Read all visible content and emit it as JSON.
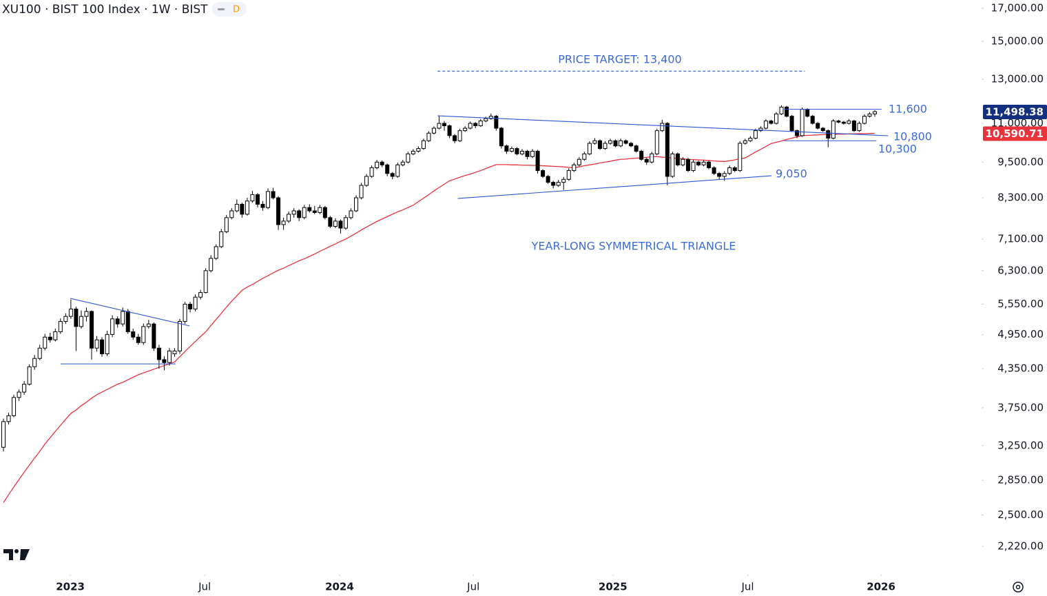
{
  "chart_data": {
    "type": "candlestick",
    "title": "XU100 · BIST 100 Index · 1W · BIST",
    "badge": "D",
    "log_scale": true,
    "ylim": [
      2016,
      17540
    ],
    "yticks": [
      {
        "value": 17000,
        "label": "17,000.00"
      },
      {
        "value": 15000,
        "label": "15,000.00"
      },
      {
        "value": 13000,
        "label": "13,000.00"
      },
      {
        "value": 11000,
        "label": "11,000.00"
      },
      {
        "value": 9500,
        "label": "9,500.00"
      },
      {
        "value": 8300,
        "label": "8,300.00"
      },
      {
        "value": 7100,
        "label": "7,100.00"
      },
      {
        "value": 6300,
        "label": "6,300.00"
      },
      {
        "value": 5550,
        "label": "5,550.00"
      },
      {
        "value": 4950,
        "label": "4,950.00"
      },
      {
        "value": 4350,
        "label": "4,350.00"
      },
      {
        "value": 3750,
        "label": "3,750.00"
      },
      {
        "value": 3250,
        "label": "3,250.00"
      },
      {
        "value": 2850,
        "label": "2,850.00"
      },
      {
        "value": 2500,
        "label": "2,500.00"
      },
      {
        "value": 2220,
        "label": "2,220.00"
      }
    ],
    "xlim": [
      -0.664,
      188.58
    ],
    "xticks": [
      {
        "value": 12.9,
        "label": "2023"
      },
      {
        "value": 38.8,
        "label": "Jul"
      },
      {
        "value": 64.8,
        "label": "2024"
      },
      {
        "value": 90.6,
        "label": "Jul"
      },
      {
        "value": 117.5,
        "label": "2025"
      },
      {
        "value": 143.5,
        "label": "Jul"
      },
      {
        "value": 169.2,
        "label": "2026"
      }
    ],
    "up_color": "#ffffff",
    "down_color": "#000000",
    "candles": [
      [
        3230,
        3600,
        3180,
        3560
      ],
      [
        3560,
        3680,
        3520,
        3640
      ],
      [
        3640,
        3940,
        3620,
        3900
      ],
      [
        3900,
        4020,
        3850,
        3980
      ],
      [
        3980,
        4150,
        3940,
        4100
      ],
      [
        4100,
        4420,
        4080,
        4380
      ],
      [
        4380,
        4580,
        4330,
        4520
      ],
      [
        4520,
        4760,
        4490,
        4700
      ],
      [
        4700,
        4960,
        4660,
        4900
      ],
      [
        4900,
        4980,
        4800,
        4850
      ],
      [
        4850,
        5060,
        4820,
        5000
      ],
      [
        5000,
        5260,
        4960,
        5200
      ],
      [
        5200,
        5360,
        5150,
        5300
      ],
      [
        5300,
        5650,
        5250,
        5450
      ],
      [
        5450,
        5500,
        4650,
        5100
      ],
      [
        5100,
        5420,
        5060,
        5300
      ],
      [
        5300,
        5480,
        5200,
        5400
      ],
      [
        5400,
        5420,
        4500,
        4700
      ],
      [
        4700,
        4920,
        4640,
        4850
      ],
      [
        4850,
        4900,
        4550,
        4600
      ],
      [
        4600,
        5020,
        4560,
        4950
      ],
      [
        4950,
        5320,
        4900,
        5250
      ],
      [
        5250,
        5300,
        5080,
        5150
      ],
      [
        5150,
        5480,
        5100,
        5400
      ],
      [
        5400,
        5450,
        4960,
        5000
      ],
      [
        5000,
        5060,
        4850,
        4900
      ],
      [
        4900,
        4960,
        4760,
        4800
      ],
      [
        4800,
        5160,
        4760,
        5100
      ],
      [
        5100,
        5230,
        5060,
        5150
      ],
      [
        5150,
        5180,
        4650,
        4700
      ],
      [
        4700,
        4760,
        4350,
        4500
      ],
      [
        4500,
        4560,
        4320,
        4450
      ],
      [
        4450,
        4700,
        4400,
        4650
      ],
      [
        4600,
        4700,
        4550,
        4650
      ],
      [
        4650,
        5250,
        4600,
        5200
      ],
      [
        5200,
        5600,
        5150,
        5550
      ],
      [
        5550,
        5600,
        5380,
        5450
      ],
      [
        5450,
        5760,
        5400,
        5700
      ],
      [
        5700,
        5860,
        5650,
        5800
      ],
      [
        5800,
        6360,
        5780,
        6300
      ],
      [
        6300,
        6680,
        6260,
        6600
      ],
      [
        6600,
        6960,
        6560,
        6900
      ],
      [
        6900,
        7380,
        6860,
        7300
      ],
      [
        7300,
        7780,
        7260,
        7700
      ],
      [
        7700,
        7980,
        7650,
        7900
      ],
      [
        7900,
        8250,
        7850,
        8100
      ],
      [
        8100,
        8150,
        7700,
        7800
      ],
      [
        7800,
        8300,
        7760,
        8200
      ],
      [
        8200,
        8520,
        8150,
        8400
      ],
      [
        8400,
        8450,
        8000,
        8100
      ],
      [
        8100,
        8200,
        7900,
        8000
      ],
      [
        8000,
        8600,
        7950,
        8500
      ],
      [
        8500,
        8620,
        8250,
        8300
      ],
      [
        8300,
        8350,
        7350,
        7500
      ],
      [
        7500,
        7700,
        7350,
        7600
      ],
      [
        7600,
        7880,
        7550,
        7800
      ],
      [
        7800,
        7980,
        7700,
        7900
      ],
      [
        7900,
        7950,
        7600,
        7700
      ],
      [
        7700,
        8080,
        7650,
        8000
      ],
      [
        8000,
        8100,
        7850,
        7900
      ],
      [
        7900,
        8050,
        7800,
        7850
      ],
      [
        7850,
        8080,
        7800,
        8000
      ],
      [
        8000,
        8050,
        7650,
        7700
      ],
      [
        7700,
        7750,
        7400,
        7450
      ],
      [
        7450,
        7680,
        7400,
        7600
      ],
      [
        7600,
        7650,
        7250,
        7400
      ],
      [
        7400,
        7780,
        7350,
        7700
      ],
      [
        7700,
        7980,
        7650,
        7900
      ],
      [
        7900,
        8380,
        7860,
        8300
      ],
      [
        8300,
        8780,
        8250,
        8700
      ],
      [
        8700,
        9080,
        8650,
        9000
      ],
      [
        9000,
        9380,
        8950,
        9300
      ],
      [
        9300,
        9580,
        9250,
        9500
      ],
      [
        9500,
        9560,
        9320,
        9400
      ],
      [
        9400,
        9450,
        9000,
        9100
      ],
      [
        9100,
        9150,
        8900,
        9000
      ],
      [
        9000,
        9480,
        8950,
        9400
      ],
      [
        9400,
        9580,
        9350,
        9500
      ],
      [
        9500,
        9880,
        9450,
        9800
      ],
      [
        9800,
        9980,
        9750,
        9900
      ],
      [
        9900,
        10080,
        9850,
        10000
      ],
      [
        10000,
        10380,
        9950,
        10300
      ],
      [
        10300,
        10680,
        10250,
        10600
      ],
      [
        10600,
        10880,
        10550,
        10800
      ],
      [
        10800,
        11300,
        10750,
        11000
      ],
      [
        11000,
        11100,
        10700,
        10900
      ],
      [
        10900,
        10950,
        10400,
        10500
      ],
      [
        10500,
        10560,
        10200,
        10300
      ],
      [
        10300,
        10780,
        10250,
        10700
      ],
      [
        10700,
        10880,
        10650,
        10800
      ],
      [
        10800,
        11080,
        10750,
        11000
      ],
      [
        11000,
        11050,
        10800,
        10900
      ],
      [
        10900,
        11180,
        10850,
        11100
      ],
      [
        11100,
        11280,
        11050,
        11200
      ],
      [
        11200,
        11420,
        11150,
        11300
      ],
      [
        11300,
        11350,
        10700,
        10800
      ],
      [
        10800,
        10850,
        10000,
        10100
      ],
      [
        10100,
        10150,
        9800,
        9900
      ],
      [
        9900,
        10080,
        9850,
        10000
      ],
      [
        10000,
        10050,
        9750,
        9800
      ],
      [
        9800,
        9980,
        9750,
        9900
      ],
      [
        9900,
        9950,
        9600,
        9700
      ],
      [
        9700,
        9980,
        9650,
        9900
      ],
      [
        9900,
        9950,
        9100,
        9200
      ],
      [
        9200,
        9250,
        8950,
        9000
      ],
      [
        9000,
        9050,
        8750,
        8800
      ],
      [
        8800,
        8850,
        8600,
        8700
      ],
      [
        8700,
        8880,
        8650,
        8800
      ],
      [
        8800,
        8980,
        8550,
        8900
      ],
      [
        8900,
        9280,
        8850,
        9200
      ],
      [
        9200,
        9480,
        9150,
        9400
      ],
      [
        9400,
        9680,
        9350,
        9600
      ],
      [
        9600,
        9880,
        9550,
        9800
      ],
      [
        9800,
        10280,
        9750,
        10200
      ],
      [
        10200,
        10400,
        10150,
        10300
      ],
      [
        10300,
        10350,
        9950,
        10000
      ],
      [
        10000,
        10280,
        9950,
        10200
      ],
      [
        10200,
        10380,
        10150,
        10300
      ],
      [
        10300,
        10350,
        10050,
        10100
      ],
      [
        10100,
        10380,
        10050,
        10300
      ],
      [
        10300,
        10350,
        10150,
        10200
      ],
      [
        10200,
        10250,
        10050,
        10100
      ],
      [
        10100,
        10150,
        9850,
        9900
      ],
      [
        9900,
        9950,
        9550,
        9600
      ],
      [
        9600,
        9650,
        9400,
        9500
      ],
      [
        9500,
        9880,
        9450,
        9800
      ],
      [
        9800,
        10780,
        9750,
        10700
      ],
      [
        10700,
        11150,
        10650,
        11000
      ],
      [
        11000,
        11050,
        8700,
        9000
      ],
      [
        9000,
        9880,
        8950,
        9800
      ],
      [
        9800,
        9850,
        9350,
        9400
      ],
      [
        9400,
        9680,
        9350,
        9600
      ],
      [
        9600,
        9650,
        9150,
        9200
      ],
      [
        9200,
        9580,
        9150,
        9500
      ],
      [
        9500,
        9550,
        9350,
        9400
      ],
      [
        9400,
        9580,
        9350,
        9500
      ],
      [
        9500,
        9550,
        9250,
        9300
      ],
      [
        9300,
        9350,
        9050,
        9100
      ],
      [
        9100,
        9150,
        8900,
        9000
      ],
      [
        9000,
        9180,
        8850,
        9100
      ],
      [
        9100,
        9380,
        9050,
        9300
      ],
      [
        9300,
        9350,
        9150,
        9200
      ],
      [
        9200,
        10280,
        9150,
        10200
      ],
      [
        10200,
        10380,
        10150,
        10300
      ],
      [
        10300,
        10480,
        10250,
        10400
      ],
      [
        10400,
        10780,
        10350,
        10700
      ],
      [
        10700,
        10880,
        10650,
        10800
      ],
      [
        10800,
        11180,
        10750,
        11100
      ],
      [
        11100,
        11150,
        10950,
        11000
      ],
      [
        11000,
        11480,
        10950,
        11400
      ],
      [
        11400,
        11780,
        11350,
        11700
      ],
      [
        11700,
        11750,
        11250,
        11300
      ],
      [
        11300,
        11350,
        10650,
        10700
      ],
      [
        10700,
        10750,
        10400,
        10500
      ],
      [
        10500,
        11680,
        10450,
        11600
      ],
      [
        11600,
        11650,
        11250,
        11300
      ],
      [
        11300,
        11350,
        10950,
        11000
      ],
      [
        11000,
        11050,
        10750,
        10800
      ],
      [
        10800,
        10850,
        10650,
        10700
      ],
      [
        10700,
        10750,
        10050,
        10400
      ],
      [
        10400,
        11180,
        10350,
        11100
      ],
      [
        11100,
        11150,
        11000,
        11050
      ],
      [
        11050,
        11100,
        10950,
        11000
      ],
      [
        11000,
        11180,
        10950,
        11100
      ],
      [
        11100,
        11150,
        10650,
        10700
      ],
      [
        10700,
        11080,
        10650,
        11000
      ],
      [
        11000,
        11380,
        10950,
        11300
      ],
      [
        11300,
        11480,
        11250,
        11400
      ],
      [
        11400,
        11560,
        11280,
        11498.38
      ]
    ],
    "close_label": "11,498.38",
    "close_label_color": "#132f80",
    "ma": {
      "color": "#e8323c",
      "value_label": "10,590.71",
      "values": [
        2620,
        2700,
        2780,
        2860,
        2940,
        3020,
        3100,
        3180,
        3270,
        3350,
        3430,
        3510,
        3590,
        3670,
        3720,
        3780,
        3830,
        3890,
        3940,
        3980,
        4020,
        4060,
        4100,
        4130,
        4170,
        4210,
        4250,
        4280,
        4310,
        4340,
        4370,
        4400,
        4430,
        4460,
        4550,
        4640,
        4730,
        4820,
        4910,
        5000,
        5120,
        5240,
        5360,
        5490,
        5610,
        5730,
        5850,
        5920,
        5980,
        6050,
        6120,
        6180,
        6250,
        6310,
        6360,
        6420,
        6480,
        6540,
        6590,
        6650,
        6710,
        6780,
        6840,
        6910,
        6970,
        7040,
        7100,
        7180,
        7260,
        7350,
        7430,
        7510,
        7590,
        7660,
        7730,
        7800,
        7870,
        7930,
        8000,
        8070,
        8180,
        8290,
        8400,
        8520,
        8630,
        8740,
        8850,
        8910,
        8970,
        9030,
        9080,
        9140,
        9200,
        9270,
        9340,
        9410,
        9410,
        9410,
        9400,
        9400,
        9390,
        9390,
        9380,
        9380,
        9370,
        9360,
        9350,
        9340,
        9330,
        9310,
        9300,
        9330,
        9370,
        9400,
        9430,
        9470,
        9500,
        9530,
        9570,
        9600,
        9610,
        9630,
        9640,
        9660,
        9670,
        9690,
        9700,
        9680,
        9670,
        9650,
        9630,
        9620,
        9600,
        9590,
        9580,
        9570,
        9560,
        9540,
        9530,
        9520,
        9550,
        9580,
        9620,
        9650,
        9760,
        9870,
        9970,
        10080,
        10190,
        10240,
        10290,
        10350,
        10400,
        10450,
        10500,
        10510,
        10520,
        10530,
        10540,
        10550,
        10550,
        10560,
        10560,
        10570,
        10570,
        10580,
        10580,
        10590,
        10590.71
      ]
    },
    "line_color": "#2a55d6",
    "trendlines": [
      {
        "x": [
          12.9,
          35.9
        ],
        "y": [
          5673,
          5112
        ]
      },
      {
        "x": [
          11,
          33.2
        ],
        "y": [
          4428,
          4428
        ]
      },
      {
        "x": [
          83.7,
          170.6
        ],
        "y": [
          11319,
          10496
        ]
      },
      {
        "x": [
          87.6,
          148.1
        ],
        "y": [
          8279,
          9022
        ]
      },
      {
        "x": [
          83.7,
          154.5
        ],
        "y": [
          13400,
          13400
        ],
        "dashed": true
      },
      {
        "x": [
          150.5,
          169.3
        ],
        "y": [
          11600,
          11600
        ]
      },
      {
        "x": [
          150.5,
          168.3
        ],
        "y": [
          10300,
          10300
        ]
      }
    ],
    "annotations": [
      "PRICE TARGET: 13,400",
      "YEAR-LONG SYMMETRICAL TRIANGLE",
      "11,600",
      "10,800",
      "10,300",
      "9,050"
    ]
  }
}
